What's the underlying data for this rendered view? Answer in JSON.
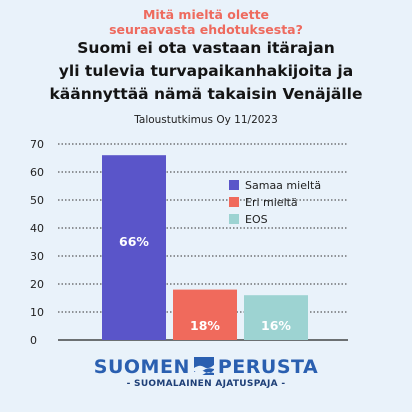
{
  "question": [
    "Mitä mieltä olette",
    "seuraavasta ehdotuksesta?"
  ],
  "headline": [
    "Suomi ei ota vastaan itärajan",
    "yli tulevia turvapaikanhakijoita ja",
    "käännyttää nämä takaisin Venäjälle"
  ],
  "source": "Taloustutkimus Oy 11/2023",
  "chart_data": {
    "type": "bar",
    "categories": [
      "Samaa mieltä",
      "Eri mieltä",
      "EOS"
    ],
    "values": [
      66,
      18,
      16
    ],
    "value_labels": [
      "66%",
      "18%",
      "16%"
    ],
    "colors": [
      "#5a55c9",
      "#f06a5c",
      "#9dd3d2"
    ],
    "ylim": [
      0,
      70
    ],
    "yticks": [
      0,
      10,
      20,
      30,
      40,
      50,
      60,
      70
    ],
    "grid": true,
    "legend_position": "right",
    "legend": [
      "Samaa mieltä",
      "Eri mieltä",
      "EOS"
    ]
  },
  "logo": {
    "left": "SUOMEN",
    "right": "PERUSTA",
    "tagline": "- SUOMALAINEN AJATUSPAJA -"
  },
  "colors": {
    "background": "#e9f2fa",
    "accent": "#ee6a5e",
    "brand": "#2a5fb0"
  },
  "icons": {
    "logo_mark": "perusta-logo-icon"
  }
}
